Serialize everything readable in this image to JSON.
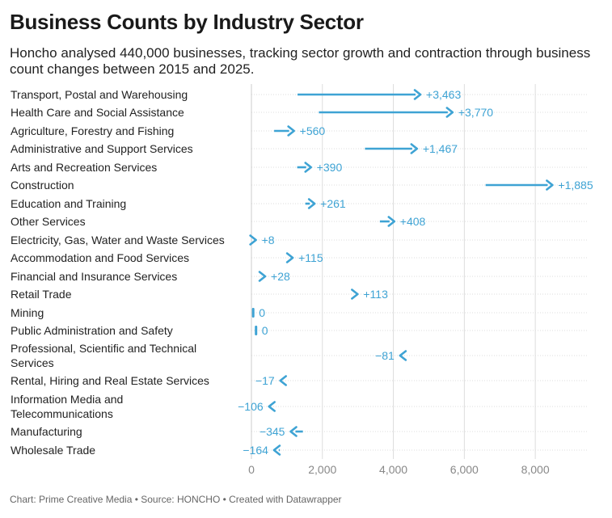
{
  "title": "Business Counts by Industry Sector",
  "subtitle": "Honcho analysed 440,000 businesses, tracking sector growth and contraction through business count changes between 2015 and 2025.",
  "footer": "Chart: Prime Creative Media • Source: HONCHO • Created with Datawrapper",
  "colors": {
    "arrow": "#3ea3d4",
    "label": "#3ea3d4",
    "grid": "#dddddd",
    "zero_line": "#cccccc"
  },
  "chart_data": {
    "type": "arrow",
    "title": "Business Counts by Industry Sector",
    "xlim": [
      0,
      9000
    ],
    "x_ticks": [
      0,
      2000,
      4000,
      6000,
      8000
    ],
    "x_tick_labels": [
      "0",
      "2,000",
      "4,000",
      "6,000",
      "8,000"
    ],
    "series_names": [
      "2015",
      "2025"
    ],
    "rows": [
      {
        "label": [
          "Transport, Postal and Warehousing"
        ],
        "start": 1300,
        "end": 4763,
        "change": "+3,463"
      },
      {
        "label": [
          "Health Care and Social Assistance"
        ],
        "start": 1900,
        "end": 5670,
        "change": "+3,770"
      },
      {
        "label": [
          "Agriculture, Forestry and Fishing"
        ],
        "start": 640,
        "end": 1200,
        "change": "+560"
      },
      {
        "label": [
          "Administrative and Support Services"
        ],
        "start": 3200,
        "end": 4667,
        "change": "+1,467"
      },
      {
        "label": [
          "Arts and Recreation Services"
        ],
        "start": 1290,
        "end": 1680,
        "change": "+390"
      },
      {
        "label": [
          "Construction"
        ],
        "start": 6600,
        "end": 8485,
        "change": "+1,885"
      },
      {
        "label": [
          "Education and Training"
        ],
        "start": 1520,
        "end": 1781,
        "change": "+261"
      },
      {
        "label": [
          "Other Services"
        ],
        "start": 3620,
        "end": 4028,
        "change": "+408"
      },
      {
        "label": [
          "Electricity, Gas, Water and Waste Services"
        ],
        "start": 120,
        "end": 128,
        "change": "+8"
      },
      {
        "label": [
          "Accommodation and Food Services"
        ],
        "start": 1050,
        "end": 1165,
        "change": "+115"
      },
      {
        "label": [
          "Financial and Insurance Services"
        ],
        "start": 360,
        "end": 388,
        "change": "+28"
      },
      {
        "label": [
          "Retail Trade"
        ],
        "start": 2880,
        "end": 2993,
        "change": "+113"
      },
      {
        "label": [
          "Mining"
        ],
        "start": 50,
        "end": 50,
        "change": "0"
      },
      {
        "label": [
          "Public Administration and Safety"
        ],
        "start": 130,
        "end": 130,
        "change": "0"
      },
      {
        "label": [
          "Professional, Scientific and Technical",
          "Services"
        ],
        "start": 4270,
        "end": 4189,
        "change": "−81"
      },
      {
        "label": [
          "Rental, Hiring and Real Estate Services"
        ],
        "start": 830,
        "end": 813,
        "change": "−17"
      },
      {
        "label": [
          "Information Media and",
          "Telecommunications"
        ],
        "start": 600,
        "end": 494,
        "change": "−106"
      },
      {
        "label": [
          "Manufacturing"
        ],
        "start": 1450,
        "end": 1105,
        "change": "−345"
      },
      {
        "label": [
          "Wholesale Trade"
        ],
        "start": 800,
        "end": 636,
        "change": "−164"
      }
    ]
  }
}
